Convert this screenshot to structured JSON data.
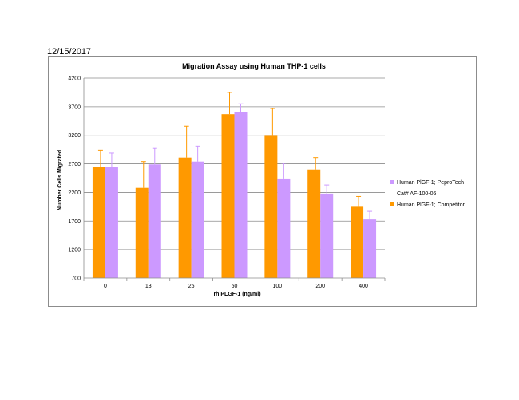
{
  "page": {
    "date": "12/15/2017"
  },
  "chart_data": {
    "type": "bar",
    "title": "Migration Assay using Human THP-1 cells",
    "xlabel": "rh PLGF-1 (ng/ml)",
    "ylabel": "Number Cells Migrated",
    "categories": [
      "0",
      "13",
      "25",
      "50",
      "100",
      "200",
      "400"
    ],
    "ylim": [
      700,
      4200
    ],
    "yticks": [
      700,
      1200,
      1700,
      2200,
      2700,
      3200,
      3700,
      4200
    ],
    "grid": true,
    "legend_position": "right",
    "series": [
      {
        "name": "Human PlGF-1; Competitor",
        "color": "#ff9900",
        "values": [
          2650,
          2280,
          2810,
          3570,
          3190,
          2600,
          1950
        ],
        "errors": [
          290,
          460,
          550,
          380,
          480,
          210,
          180
        ]
      },
      {
        "name": "Human PlGF-1; PeproTech Cat# AF-100-06",
        "color": "#cc99ff",
        "values": [
          2640,
          2690,
          2740,
          3610,
          2430,
          2180,
          1730
        ],
        "errors": [
          250,
          280,
          270,
          140,
          280,
          150,
          140
        ]
      }
    ],
    "legend": [
      {
        "label_lines": [
          "Human PlGF-1; PeproTech",
          "Cat# AF-100-06"
        ],
        "color": "#cc99ff"
      },
      {
        "label_lines": [
          "Human PlGF-1; Competitor"
        ],
        "color": "#ff9900"
      }
    ]
  }
}
